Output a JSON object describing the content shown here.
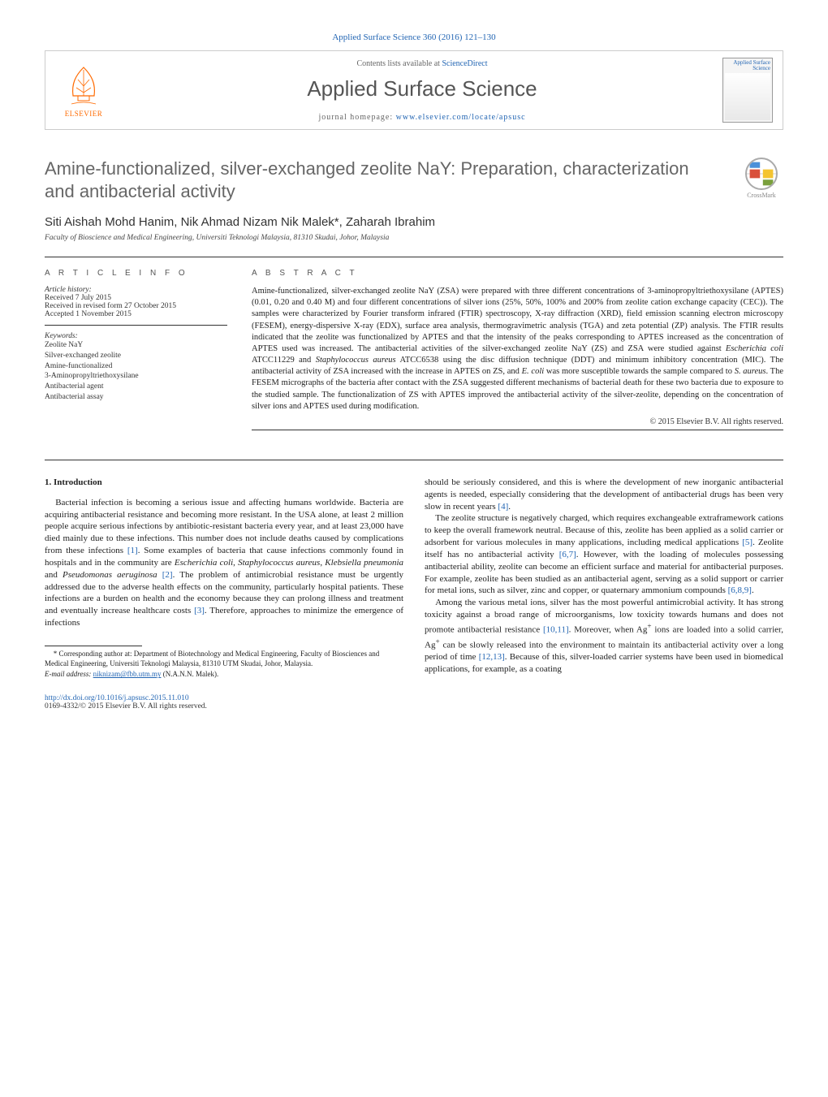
{
  "colors": {
    "link": "#2265b3",
    "accent_orange": "#ff6a00",
    "text": "#333333",
    "title_gray": "#666666"
  },
  "header": {
    "citation": "Applied Surface Science 360 (2016) 121–130",
    "publisher_name": "ELSEVIER",
    "contents_prefix": "Contents lists available at ",
    "contents_link": "ScienceDirect",
    "journal_name": "Applied Surface Science",
    "homepage_prefix": "journal homepage: ",
    "homepage_link": "www.elsevier.com/locate/apsusc",
    "cover_title": "Applied Surface Science"
  },
  "crossmark_label": "CrossMark",
  "article": {
    "title": "Amine-functionalized, silver-exchanged zeolite NaY: Preparation, characterization and antibacterial activity",
    "authors": "Siti Aishah Mohd Hanim, Nik Ahmad Nizam Nik Malek*, Zaharah Ibrahim",
    "affiliation": "Faculty of Bioscience and Medical Engineering, Universiti Teknologi Malaysia, 81310 Skudai, Johor, Malaysia"
  },
  "info": {
    "heading": "A R T I C L E   I N F O",
    "history_label": "Article history:",
    "received": "Received 7 July 2015",
    "revised": "Received in revised form 27 October 2015",
    "accepted": "Accepted 1 November 2015",
    "keywords_label": "Keywords:",
    "keywords": [
      "Zeolite NaY",
      "Silver-exchanged zeolite",
      "Amine-functionalized",
      "3-Aminopropyltriethoxysilane",
      "Antibacterial agent",
      "Antibacterial assay"
    ]
  },
  "abstract": {
    "heading": "A B S T R A C T",
    "text_html": "Amine-functionalized, silver-exchanged zeolite NaY (ZSA) were prepared with three different concentrations of 3-aminopropyltriethoxysilane (APTES) (0.01, 0.20 and 0.40 M) and four different concentrations of silver ions (25%, 50%, 100% and 200% from zeolite cation exchange capacity (CEC)). The samples were characterized by Fourier transform infrared (FTIR) spectroscopy, X-ray diffraction (XRD), field emission scanning electron microscopy (FESEM), energy-dispersive X-ray (EDX), surface area analysis, thermogravimetric analysis (TGA) and zeta potential (ZP) analysis. The FTIR results indicated that the zeolite was functionalized by APTES and that the intensity of the peaks corresponding to APTES increased as the concentration of APTES used was increased. The antibacterial activities of the silver-exchanged zeolite NaY (ZS) and ZSA were studied against <i>Escherichia coli</i> ATCC11229 and <i>Staphylococcus aureus</i> ATCC6538 using the disc diffusion technique (DDT) and minimum inhibitory concentration (MIC). The antibacterial activity of ZSA increased with the increase in APTES on ZS, and <i>E. coli</i> was more susceptible towards the sample compared to <i>S. aureus</i>. The FESEM micrographs of the bacteria after contact with the ZSA suggested different mechanisms of bacterial death for these two bacteria due to exposure to the studied sample. The functionalization of ZS with APTES improved the antibacterial activity of the silver-zeolite, depending on the concentration of silver ions and APTES used during modification.",
    "copyright": "© 2015 Elsevier B.V. All rights reserved."
  },
  "body": {
    "section_heading": "1. Introduction",
    "para1_html": "Bacterial infection is becoming a serious issue and affecting humans worldwide. Bacteria are acquiring antibacterial resistance and becoming more resistant. In the USA alone, at least 2 million people acquire serious infections by antibiotic-resistant bacteria every year, and at least 23,000 have died mainly due to these infections. This number does not include deaths caused by complications from these infections <span class=\"cite\">[1]</span>. Some examples of bacteria that cause infections commonly found in hospitals and in the community are <i>Escherichia coli</i>, <i>Staphylococcus aureus</i>, <i>Klebsiella pneumonia</i> and <i>Pseudomonas aeruginosa</i> <span class=\"cite\">[2]</span>. The problem of antimicrobial resistance must be urgently addressed due to the adverse health effects on the community, particularly hospital patients. These infections are a burden on health and the economy because they can prolong illness and treatment and eventually increase healthcare costs <span class=\"cite\">[3]</span>. Therefore, approaches to minimize the emergence of infections",
    "para1_cont_html": "should be seriously considered, and this is where the development of new inorganic antibacterial agents is needed, especially considering that the development of antibacterial drugs has been very slow in recent years <span class=\"cite\">[4]</span>.",
    "para2_html": "The zeolite structure is negatively charged, which requires exchangeable extraframework cations to keep the overall framework neutral. Because of this, zeolite has been applied as a solid carrier or adsorbent for various molecules in many applications, including medical applications <span class=\"cite\">[5]</span>. Zeolite itself has no antibacterial activity <span class=\"cite\">[6,7]</span>. However, with the loading of molecules possessing antibacterial ability, zeolite can become an efficient surface and material for antibacterial purposes. For example, zeolite has been studied as an antibacterial agent, serving as a solid support or carrier for metal ions, such as silver, zinc and copper, or quaternary ammonium compounds <span class=\"cite\">[6,8,9]</span>.",
    "para3_html": "Among the various metal ions, silver has the most powerful antimicrobial activity. It has strong toxicity against a broad range of microorganisms, low toxicity towards humans and does not promote antibacterial resistance <span class=\"cite\">[10,11]</span>. Moreover, when Ag<sup>+</sup> ions are loaded into a solid carrier, Ag<sup>+</sup> can be slowly released into the environment to maintain its antibacterial activity over a long period of time <span class=\"cite\">[12,13]</span>. Because of this, silver-loaded carrier systems have been used in biomedical applications, for example, as a coating"
  },
  "footnotes": {
    "corr": "* Corresponding author at: Department of Biotechnology and Medical Engineering, Faculty of Biosciences and Medical Engineering, Universiti Teknologi Malaysia, 81310 UTM Skudai, Johor, Malaysia.",
    "email_label": "E-mail address: ",
    "email": "niknizam@fbb.utm.my",
    "email_suffix": " (N.A.N.N. Malek)."
  },
  "footer": {
    "doi": "http://dx.doi.org/10.1016/j.apsusc.2015.11.010",
    "issn": "0169-4332/© 2015 Elsevier B.V. All rights reserved."
  }
}
